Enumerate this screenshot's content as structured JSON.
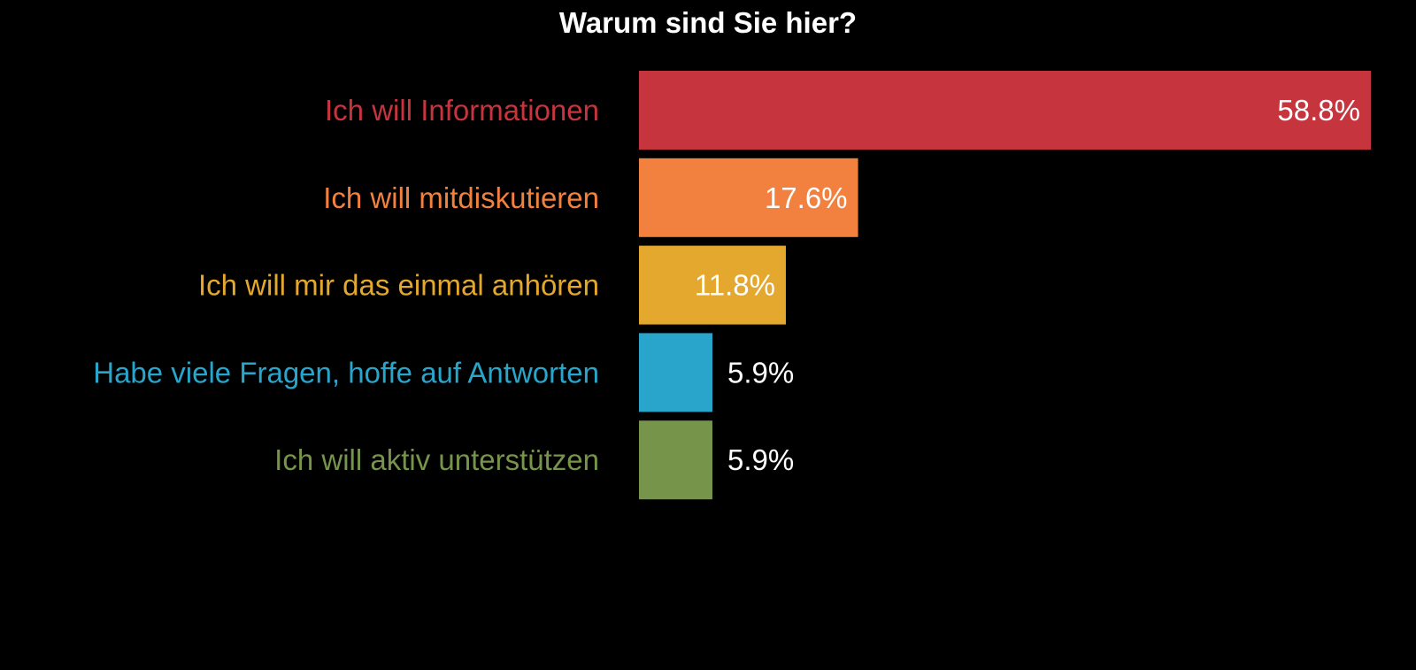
{
  "chart_data": {
    "type": "bar",
    "orientation": "horizontal",
    "title": "Warum sind Sie hier?",
    "xlabel": "",
    "ylabel": "",
    "xlim": [
      0,
      58.8
    ],
    "grid": false,
    "legend": "none",
    "background": "#000000",
    "categories": [
      "Ich will Informationen",
      "Ich will mitdiskutieren",
      "Ich will mir das einmal anhören",
      "Habe viele Fragen, hoffe auf Antworten",
      "Ich will aktiv unterstützen"
    ],
    "values": [
      58.8,
      17.6,
      11.8,
      5.9,
      5.9
    ],
    "value_labels": [
      "58.8%",
      "17.6%",
      "11.8%",
      "5.9%",
      "5.9%"
    ],
    "colors": [
      "#c6343e",
      "#f28140",
      "#e4a82e",
      "#29a5cb",
      "#76944a"
    ]
  }
}
